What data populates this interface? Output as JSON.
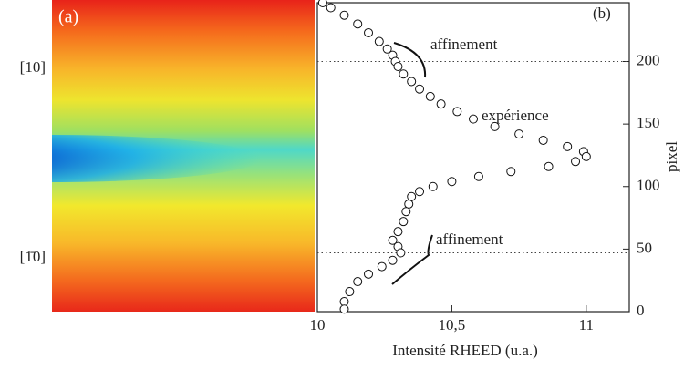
{
  "panel_a": {
    "label": "(a)",
    "directions": [
      "[10]",
      "[1̄0]"
    ]
  },
  "chart_data": {
    "type": "scatter",
    "panel_label": "(b)",
    "xlabel": "Intensité RHEED (u.a.)",
    "ylabel": "pixel",
    "annotations": [
      "affinement",
      "expérience",
      "affinement"
    ],
    "xlim": [
      10,
      11.16
    ],
    "ylim": [
      0,
      247
    ],
    "xticks": [
      10,
      {
        "value": 10.5,
        "label": "10,5"
      },
      11
    ],
    "yticks": [
      0,
      50,
      100,
      150,
      200
    ],
    "hlines": [
      200,
      47
    ],
    "color": "#ffffff",
    "x": [
      10.02,
      10.05,
      10.1,
      10.15,
      10.19,
      10.23,
      10.26,
      10.28,
      10.29,
      10.3,
      10.32,
      10.35,
      10.38,
      10.42,
      10.46,
      10.52,
      10.58,
      10.66,
      10.75,
      10.84,
      10.93,
      10.99,
      11.0,
      10.96,
      10.86,
      10.72,
      10.6,
      10.5,
      10.43,
      10.38,
      10.35,
      10.34,
      10.33,
      10.32,
      10.3,
      10.28,
      10.3,
      10.31,
      10.28,
      10.24,
      10.19,
      10.15,
      10.12,
      10.1,
      10.1
    ],
    "values": [
      247,
      243,
      237,
      230,
      223,
      216,
      210,
      205,
      200,
      196,
      190,
      184,
      178,
      172,
      166,
      160,
      154,
      148,
      142,
      137,
      132,
      128,
      124,
      120,
      116,
      112,
      108,
      104,
      100,
      96,
      92,
      86,
      80,
      72,
      64,
      57,
      52,
      47,
      41,
      36,
      30,
      24,
      16,
      8,
      2
    ]
  }
}
